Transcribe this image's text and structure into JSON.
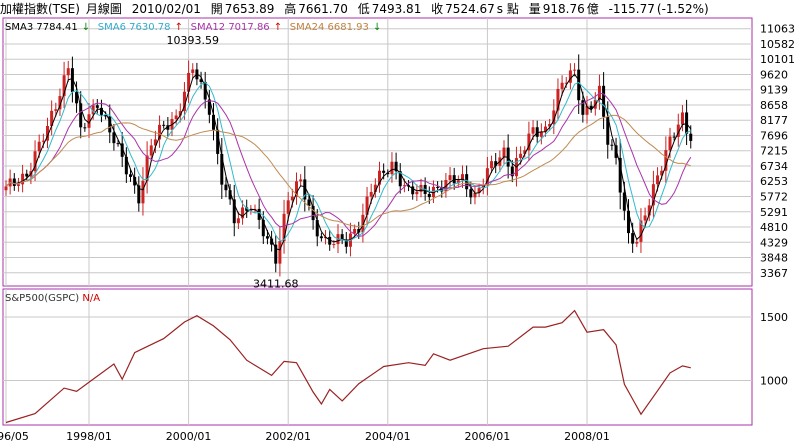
{
  "header": {
    "index_name": "加權指數(TSE)",
    "period": "月線圖",
    "date": "2010/02/01",
    "open_label": "開",
    "open": "7653.89",
    "high_label": "高",
    "high": "7661.70",
    "low_label": "低",
    "low": "7493.81",
    "close_label": "收",
    "close": "7524.67",
    "close_unit": "s 點",
    "volume_label": "量",
    "volume": "918.76",
    "volume_unit": "億",
    "change": "-115.77",
    "change_pct": "(-1.52%)"
  },
  "ma_legend": [
    {
      "label": "SMA3",
      "value": "7784.41",
      "arrow": "↓",
      "color": "#000000",
      "arrow_color": "#008000"
    },
    {
      "label": "SMA6",
      "value": "7630.78",
      "arrow": "↑",
      "color": "#33aacc",
      "arrow_color": "#cc0000"
    },
    {
      "label": "SMA12",
      "value": "7017.86",
      "arrow": "↑",
      "color": "#aa33aa",
      "arrow_color": "#cc0000"
    },
    {
      "label": "SMA24",
      "value": "6681.93",
      "arrow": "↓",
      "color": "#c08040",
      "arrow_color": "#008000"
    }
  ],
  "lower_panel_title": "S&P500(GSPC)",
  "lower_panel_value": "N/A",
  "colors": {
    "up_candle": "#cc2222",
    "down_candle": "#000000",
    "sma3": "#000000",
    "sma6": "#33bbcc",
    "sma12": "#aa33aa",
    "sma24": "#c08a50",
    "sp500": "#9a2222",
    "panel_border": "#aa33aa",
    "grid": "#c8c8c8"
  },
  "chart_data": [
    {
      "type": "candlestick",
      "title": "加權指數(TSE) 月線圖",
      "x_ticks": [
        "1996/05",
        "1998/01",
        "2000/01",
        "2002/01",
        "2004/01",
        "2006/01",
        "2008/01"
      ],
      "y_ticks": [
        3367,
        3848,
        4329,
        4810,
        5291,
        5772,
        6253,
        6734,
        7215,
        7696,
        8177,
        8658,
        9139,
        9620,
        10101,
        10582,
        11063
      ],
      "ylim": [
        2950,
        11400
      ],
      "annotations": [
        {
          "text": "10393.59",
          "date": "2000/02",
          "value": 10393.59
        },
        {
          "text": "3411.68",
          "date": "2001/10",
          "value": 3411.68
        }
      ],
      "anchors": [
        [
          "1996/05",
          6000
        ],
        [
          "1996/10",
          6500
        ],
        [
          "1997/03",
          7900
        ],
        [
          "1997/08",
          9900
        ],
        [
          "1997/11",
          7800
        ],
        [
          "1998/03",
          8800
        ],
        [
          "1998/08",
          7200
        ],
        [
          "1999/01",
          5800
        ],
        [
          "1999/04",
          7400
        ],
        [
          "1999/07",
          8000
        ],
        [
          "1999/10",
          8300
        ],
        [
          "2000/02",
          9800
        ],
        [
          "2000/06",
          8600
        ],
        [
          "2000/09",
          6300
        ],
        [
          "2000/12",
          5000
        ],
        [
          "2001/04",
          5600
        ],
        [
          "2001/08",
          4300
        ],
        [
          "2001/10",
          3800
        ],
        [
          "2002/01",
          5800
        ],
        [
          "2002/04",
          6200
        ],
        [
          "2002/07",
          4900
        ],
        [
          "2002/10",
          4400
        ],
        [
          "2003/03",
          4300
        ],
        [
          "2003/06",
          4900
        ],
        [
          "2003/09",
          6000
        ],
        [
          "2004/02",
          6800
        ],
        [
          "2004/06",
          5900
        ],
        [
          "2004/10",
          5900
        ],
        [
          "2005/03",
          6200
        ],
        [
          "2005/07",
          6300
        ],
        [
          "2005/10",
          5800
        ],
        [
          "2006/01",
          6500
        ],
        [
          "2006/05",
          7200
        ],
        [
          "2006/07",
          6600
        ],
        [
          "2006/12",
          7800
        ],
        [
          "2007/03",
          7900
        ],
        [
          "2007/07",
          9300
        ],
        [
          "2007/10",
          9700
        ],
        [
          "2007/12",
          8400
        ],
        [
          "2008/04",
          9000
        ],
        [
          "2008/06",
          7500
        ],
        [
          "2008/08",
          7000
        ],
        [
          "2008/11",
          4500
        ],
        [
          "2009/01",
          4300
        ],
        [
          "2009/03",
          5200
        ],
        [
          "2009/06",
          6500
        ],
        [
          "2009/09",
          7500
        ],
        [
          "2009/12",
          8200
        ],
        [
          "2010/02",
          7525
        ]
      ],
      "series": [
        {
          "name": "SMA3"
        },
        {
          "name": "SMA6"
        },
        {
          "name": "SMA12"
        },
        {
          "name": "SMA24"
        }
      ]
    },
    {
      "type": "line",
      "title": "S&P500(GSPC)",
      "y_ticks": [
        1000,
        1500
      ],
      "ylim": [
        650,
        1720
      ],
      "points": [
        [
          "1996/05",
          670
        ],
        [
          "1996/12",
          740
        ],
        [
          "1997/07",
          940
        ],
        [
          "1997/10",
          915
        ],
        [
          "1998/07",
          1130
        ],
        [
          "1998/09",
          1010
        ],
        [
          "1998/12",
          1220
        ],
        [
          "1999/07",
          1330
        ],
        [
          "1999/12",
          1460
        ],
        [
          "2000/03",
          1510
        ],
        [
          "2000/07",
          1430
        ],
        [
          "2000/11",
          1320
        ],
        [
          "2001/03",
          1160
        ],
        [
          "2001/09",
          1040
        ],
        [
          "2001/12",
          1150
        ],
        [
          "2002/03",
          1140
        ],
        [
          "2002/07",
          910
        ],
        [
          "2002/09",
          815
        ],
        [
          "2002/11",
          930
        ],
        [
          "2003/02",
          840
        ],
        [
          "2003/06",
          975
        ],
        [
          "2003/12",
          1110
        ],
        [
          "2004/06",
          1140
        ],
        [
          "2004/10",
          1120
        ],
        [
          "2004/12",
          1210
        ],
        [
          "2005/04",
          1160
        ],
        [
          "2005/12",
          1250
        ],
        [
          "2006/06",
          1270
        ],
        [
          "2006/12",
          1420
        ],
        [
          "2007/03",
          1420
        ],
        [
          "2007/07",
          1455
        ],
        [
          "2007/10",
          1550
        ],
        [
          "2008/01",
          1380
        ],
        [
          "2008/05",
          1400
        ],
        [
          "2008/08",
          1280
        ],
        [
          "2008/10",
          970
        ],
        [
          "2009/02",
          735
        ],
        [
          "2009/06",
          920
        ],
        [
          "2009/09",
          1060
        ],
        [
          "2009/12",
          1115
        ],
        [
          "2010/02",
          1100
        ]
      ]
    }
  ]
}
